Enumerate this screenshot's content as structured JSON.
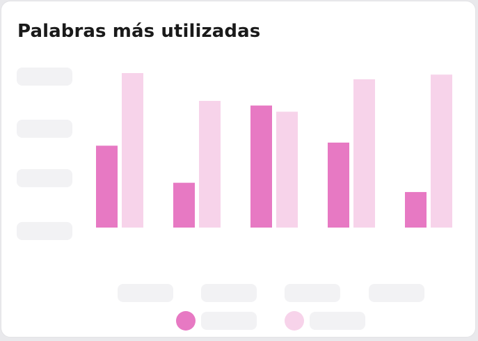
{
  "card": {
    "title": "Palabras más utilizadas"
  },
  "chart_data": {
    "type": "bar",
    "title": "Palabras más utilizadas",
    "categories": [
      "",
      "",
      "",
      "",
      ""
    ],
    "series": [
      {
        "color": "#e779c3",
        "values": [
          53,
          29,
          79,
          55,
          23
        ]
      },
      {
        "color": "#f7d3ea",
        "values": [
          100,
          82,
          75,
          96,
          99
        ]
      }
    ],
    "ylim": [
      0,
      100
    ],
    "grid": false,
    "legend": "bottom-center"
  }
}
